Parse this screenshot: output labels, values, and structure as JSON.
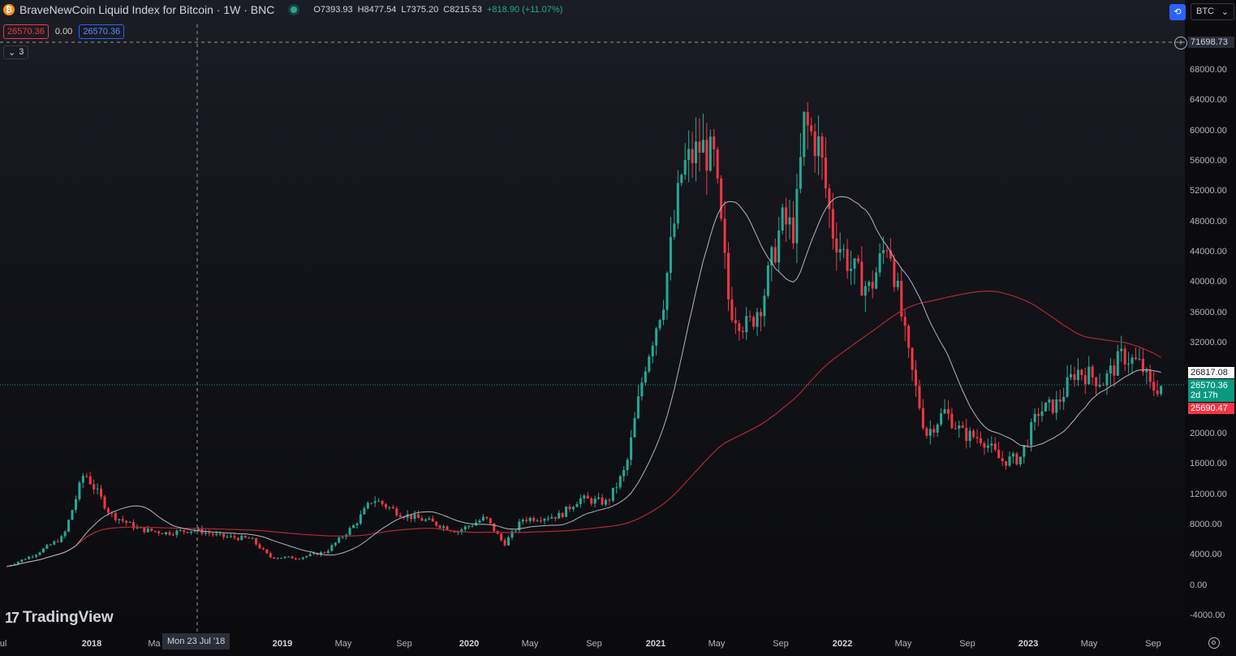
{
  "header": {
    "coin_glyph": "₿",
    "title": "BraveNewCoin Liquid Index for Bitcoin · 1W · BNC",
    "open": "O7393.93",
    "high": "H8477.54",
    "low": "L7375.20",
    "close": "C8215.53",
    "change": "+818.90 (+11.07%)"
  },
  "legend_row": {
    "left_value": "26570.36",
    "mid_value": "0.00",
    "right_value": "26570.36"
  },
  "collapse": {
    "glyph": "⌄",
    "count": "3"
  },
  "toolbar": {
    "compare_glyph": "⟲",
    "currency": "BTC",
    "currency_arrow": "⌄"
  },
  "price_axis": {
    "crosshair_price": "71698.73",
    "ticks": [
      "68000.00",
      "64000.00",
      "60000.00",
      "56000.00",
      "52000.00",
      "48000.00",
      "44000.00",
      "40000.00",
      "36000.00",
      "32000.00",
      "28000.00",
      "20000.00",
      "16000.00",
      "12000.00",
      "8000.00",
      "4000.00",
      "0.00",
      "-4000.00"
    ],
    "high_marker": "26817.08",
    "last_price": "26570.36",
    "countdown": "2d 17h",
    "ma_marker": "25690.47"
  },
  "time_axis": {
    "labels": [
      {
        "text": "ul",
        "bold": false
      },
      {
        "text": "2018",
        "bold": true
      },
      {
        "text": "Ma",
        "bold": false
      },
      {
        "text": "2019",
        "bold": true
      },
      {
        "text": "May",
        "bold": false
      },
      {
        "text": "Sep",
        "bold": false
      },
      {
        "text": "2020",
        "bold": true
      },
      {
        "text": "May",
        "bold": false
      },
      {
        "text": "Sep",
        "bold": false
      },
      {
        "text": "2021",
        "bold": true
      },
      {
        "text": "May",
        "bold": false
      },
      {
        "text": "Sep",
        "bold": false
      },
      {
        "text": "2022",
        "bold": true
      },
      {
        "text": "May",
        "bold": false
      },
      {
        "text": "Sep",
        "bold": false
      },
      {
        "text": "2023",
        "bold": true
      },
      {
        "text": "May",
        "bold": false
      },
      {
        "text": "Sep",
        "bold": false
      }
    ],
    "crosshair_date": "Mon 23 Jul '18"
  },
  "logo": {
    "mark": "17",
    "text": "TradingView"
  },
  "colors": {
    "up": "#22ab94",
    "down": "#f23645",
    "ma_short": "#b2b5be",
    "ma_long": "#b22833",
    "accent": "#2962ff"
  },
  "chart_data": {
    "type": "candlestick",
    "interval": "1W",
    "ylim": [
      -4000,
      72000
    ],
    "x_range": [
      "2017-07",
      "2023-09"
    ],
    "series": [
      {
        "values": [
          [
            2017.55,
            2600
          ],
          [
            2017.7,
            4200
          ],
          [
            2017.85,
            6500
          ],
          [
            2017.96,
            15000
          ],
          [
            2018.0,
            13500
          ],
          [
            2018.1,
            9500
          ],
          [
            2018.25,
            7500
          ],
          [
            2018.4,
            7000
          ],
          [
            2018.55,
            7400
          ],
          [
            2018.7,
            6500
          ],
          [
            2018.85,
            6200
          ],
          [
            2018.95,
            3800
          ],
          [
            2019.1,
            3700
          ],
          [
            2019.25,
            4500
          ],
          [
            2019.4,
            8000
          ],
          [
            2019.5,
            11500
          ],
          [
            2019.65,
            9500
          ],
          [
            2019.8,
            8500
          ],
          [
            2019.95,
            7200
          ],
          [
            2020.1,
            9000
          ],
          [
            2020.2,
            5500
          ],
          [
            2020.3,
            8800
          ],
          [
            2020.5,
            9300
          ],
          [
            2020.6,
            11500
          ],
          [
            2020.75,
            11000
          ],
          [
            2020.85,
            15500
          ],
          [
            2020.95,
            29000
          ],
          [
            2021.05,
            38000
          ],
          [
            2021.15,
            55000
          ],
          [
            2021.25,
            58000
          ],
          [
            2021.32,
            56000
          ],
          [
            2021.4,
            37000
          ],
          [
            2021.5,
            34000
          ],
          [
            2021.58,
            38000
          ],
          [
            2021.68,
            48000
          ],
          [
            2021.75,
            47000
          ],
          [
            2021.8,
            61000
          ],
          [
            2021.88,
            58000
          ],
          [
            2021.95,
            47000
          ],
          [
            2022.05,
            42000
          ],
          [
            2022.15,
            39000
          ],
          [
            2022.25,
            46000
          ],
          [
            2022.35,
            31000
          ],
          [
            2022.45,
            20000
          ],
          [
            2022.55,
            23000
          ],
          [
            2022.65,
            20000
          ],
          [
            2022.75,
            19500
          ],
          [
            2022.85,
            16500
          ],
          [
            2022.95,
            16800
          ],
          [
            2023.05,
            23000
          ],
          [
            2023.15,
            24000
          ],
          [
            2023.25,
            28500
          ],
          [
            2023.4,
            27000
          ],
          [
            2023.5,
            30500
          ],
          [
            2023.6,
            29000
          ],
          [
            2023.65,
            26000
          ],
          [
            2023.72,
            26570
          ]
        ]
      }
    ]
  }
}
